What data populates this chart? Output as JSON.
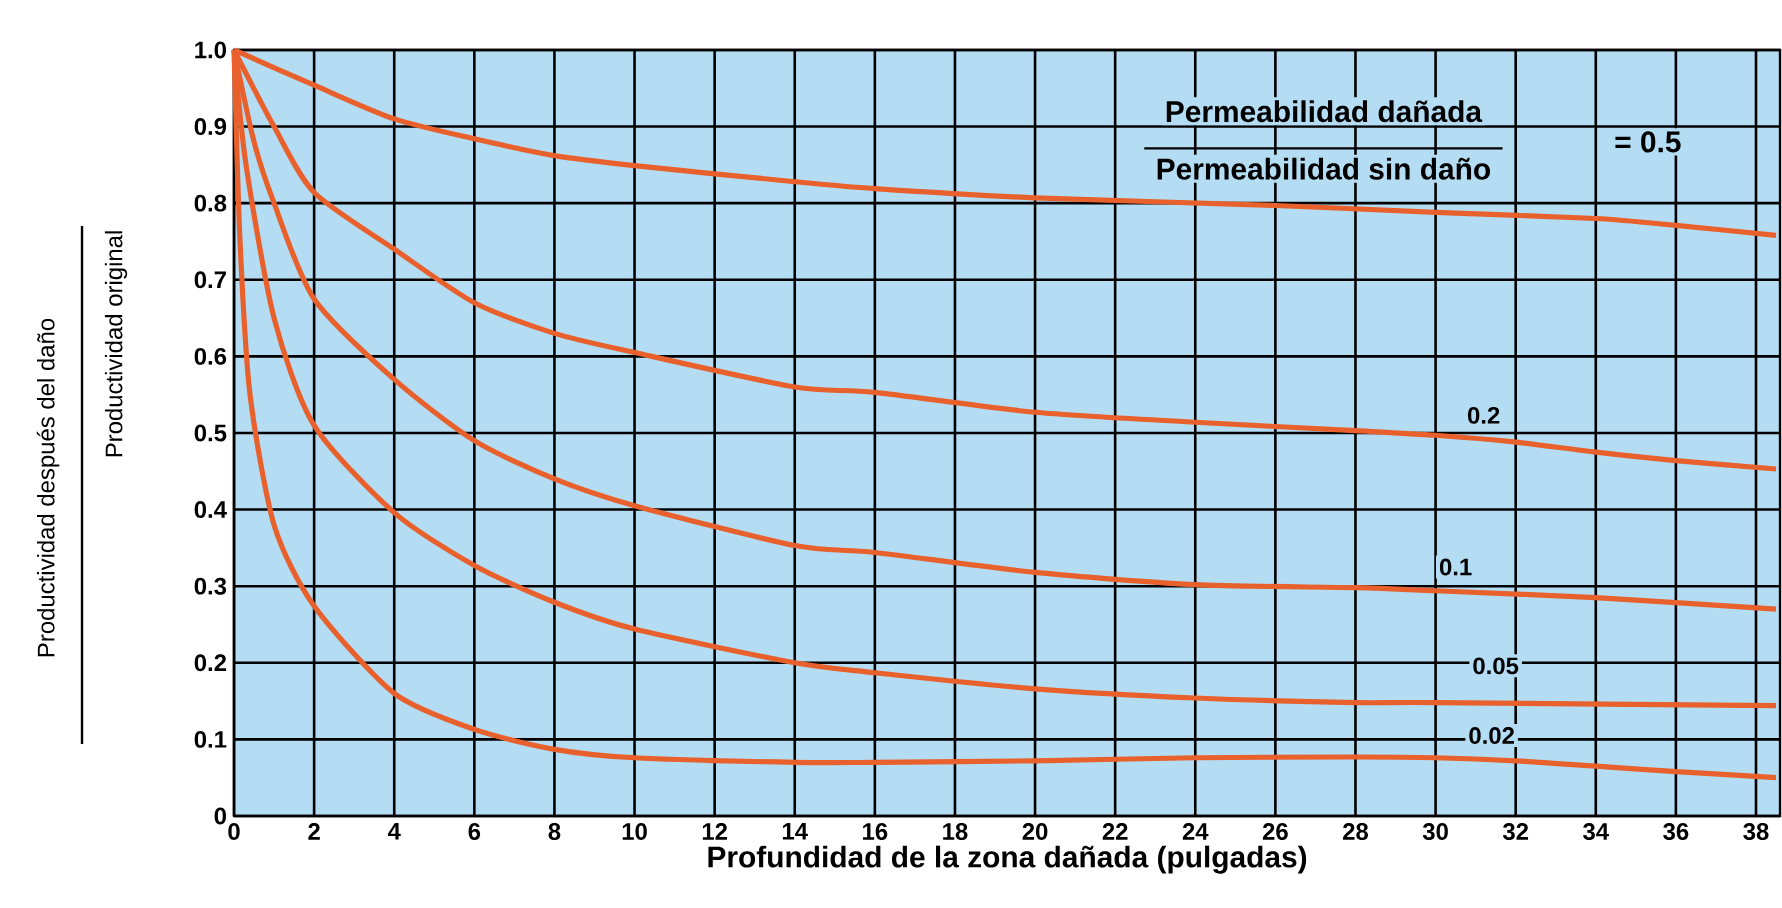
{
  "chart_data": {
    "type": "line",
    "xlabel": "Profundidad de la zona dañada (pulgadas)",
    "annotations": [
      "Permeabilidad dañada",
      "Permeabilidad sin daño",
      {
        "text": "= 0.5",
        "x": 35.3,
        "y": 0.88
      },
      {
        "text": "0.2",
        "x": 31.2,
        "y": 0.523
      },
      {
        "text": "0.1",
        "x": 30.5,
        "y": 0.325
      },
      {
        "text": "0.05",
        "x": 31.5,
        "y": 0.196
      },
      {
        "text": "0.02",
        "x": 31.4,
        "y": 0.105
      },
      "Productividad después del daño",
      "Productividad original"
    ],
    "series": [
      {
        "color": "#e8602c",
        "x": [
          0,
          2,
          4,
          6,
          8,
          10,
          14,
          16,
          20,
          26,
          30,
          34,
          36,
          38.5
        ],
        "values": [
          1,
          0.954,
          0.91,
          0.884,
          0.862,
          0.849,
          0.828,
          0.819,
          0.807,
          0.797,
          0.788,
          0.78,
          0.771,
          0.758
        ]
      },
      {
        "color": "#e8602c",
        "x": [
          0,
          1,
          2,
          4,
          6,
          8,
          10,
          14,
          16,
          20,
          24,
          28,
          30,
          32,
          34,
          36,
          38.5
        ],
        "values": [
          1,
          0.9,
          0.814,
          0.74,
          0.67,
          0.63,
          0.605,
          0.56,
          0.553,
          0.527,
          0.514,
          0.503,
          0.497,
          0.488,
          0.475,
          0.464,
          0.453
        ]
      },
      {
        "color": "#e8602c",
        "x": [
          0,
          0.5,
          1,
          2,
          4,
          6,
          8,
          10,
          14,
          16,
          20,
          24,
          28,
          30,
          34,
          38.5
        ],
        "values": [
          1,
          0.88,
          0.8,
          0.675,
          0.57,
          0.49,
          0.44,
          0.405,
          0.353,
          0.344,
          0.318,
          0.302,
          0.298,
          0.294,
          0.285,
          0.27
        ]
      },
      {
        "color": "#e8602c",
        "x": [
          0,
          0.3,
          1,
          2,
          4,
          6,
          8,
          10,
          14,
          16,
          20,
          24,
          28,
          30,
          38.5
        ],
        "values": [
          1,
          0.85,
          0.65,
          0.51,
          0.396,
          0.327,
          0.279,
          0.244,
          0.2,
          0.187,
          0.166,
          0.154,
          0.148,
          0.148,
          0.144
        ]
      },
      {
        "color": "#e8602c",
        "x": [
          0,
          0.15,
          0.4,
          1,
          2,
          4,
          6,
          8,
          10,
          14,
          16,
          20,
          24,
          28,
          30,
          32,
          34,
          36,
          38.5
        ],
        "values": [
          1,
          0.75,
          0.55,
          0.38,
          0.274,
          0.16,
          0.113,
          0.087,
          0.076,
          0.07,
          0.07,
          0.072,
          0.076,
          0.077,
          0.076,
          0.072,
          0.065,
          0.058,
          0.05
        ]
      }
    ],
    "xlim": [
      0,
      38.6
    ],
    "ylim": [
      0,
      1
    ],
    "xticks": [
      0,
      2,
      4,
      6,
      8,
      10,
      12,
      14,
      16,
      18,
      20,
      22,
      24,
      26,
      28,
      30,
      32,
      34,
      36,
      38
    ],
    "yticks": [
      0,
      0.1,
      0.2,
      0.3,
      0.4,
      0.5,
      0.6,
      0.7,
      0.8,
      0.9,
      {
        "value": 1,
        "label": "1.0"
      }
    ],
    "grid": true
  }
}
